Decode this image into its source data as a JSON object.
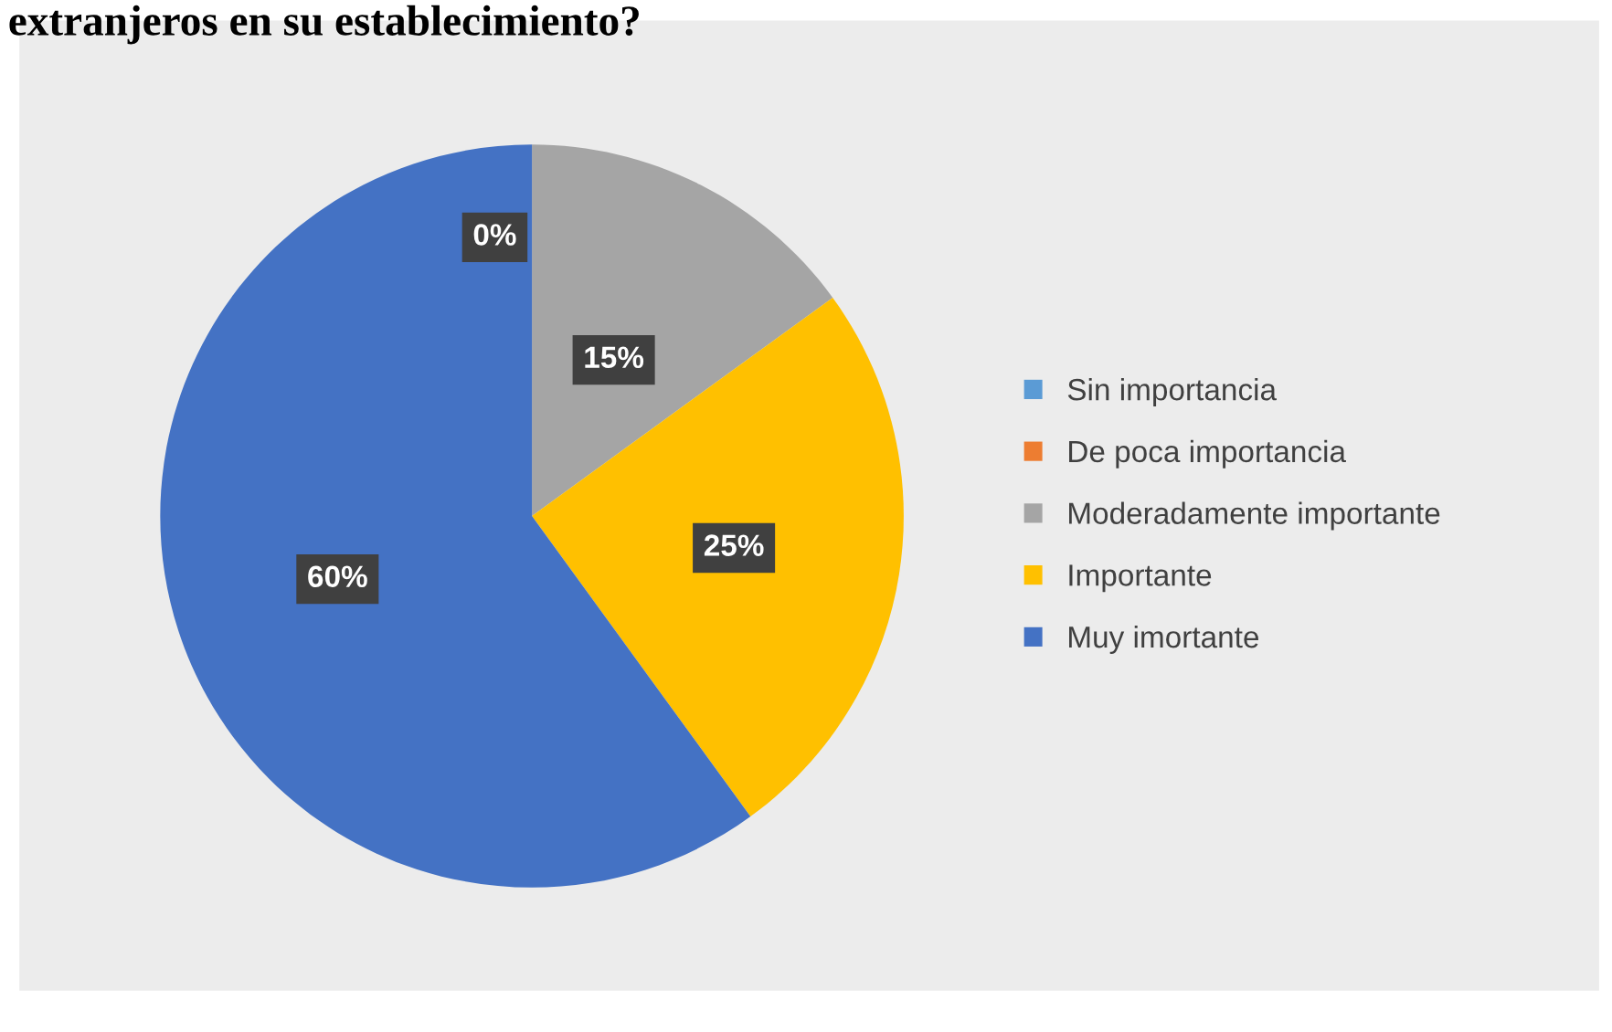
{
  "chart_data": {
    "type": "pie",
    "title": "extranjeros en su establecimiento?",
    "categories": [
      "Sin importancia",
      "De poca importancia",
      "Moderadamente importante",
      "Importante",
      "Muy imortante"
    ],
    "values": [
      0,
      0,
      15,
      25,
      60
    ],
    "colors": [
      "#5b9bd5",
      "#ed7d31",
      "#a5a5a5",
      "#ffc000",
      "#4472c4"
    ],
    "value_labels": [
      "0%",
      null,
      "15%",
      "25%",
      "60%"
    ],
    "legend": "right"
  }
}
